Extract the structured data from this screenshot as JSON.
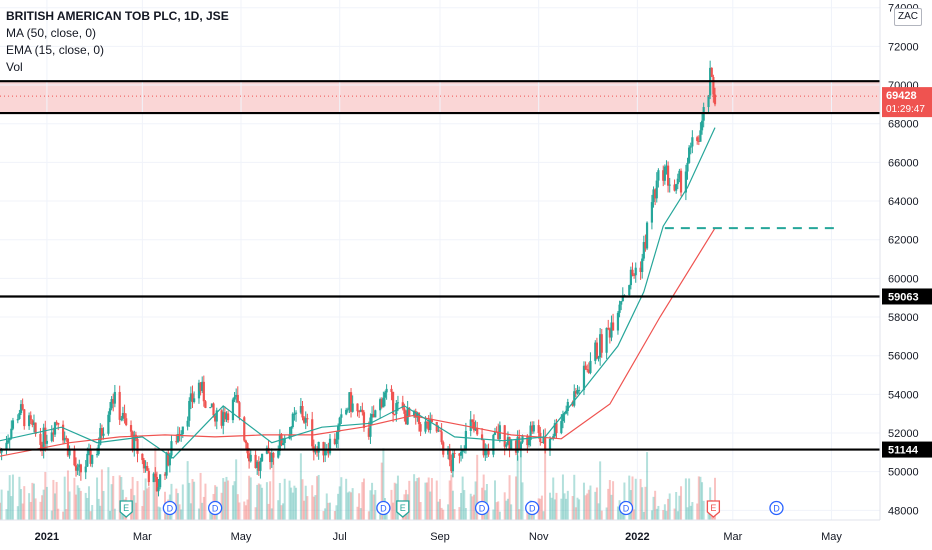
{
  "legend": {
    "title": "BRITISH AMERICAN TOB PLC, 1D, JSE",
    "ma": "MA (50, close, 0)",
    "ema": "EMA (15, close, 0)",
    "vol": "Vol"
  },
  "currency_badge": "ZAC",
  "colors": {
    "up": "#26a69a",
    "down": "#ef5350",
    "ma": "#ef5350",
    "ema": "#26a69a",
    "zone": "#f8c8c8",
    "line": "#000000",
    "target": "#26a69a",
    "price_tag": "#ef5350"
  },
  "chart_data": {
    "type": "candlestick",
    "y_axis": {
      "ylim": [
        47500,
        74400
      ],
      "ticks": [
        48000,
        50000,
        52000,
        54000,
        56000,
        58000,
        60000,
        62000,
        64000,
        66000,
        68000,
        70000,
        72000,
        74000
      ]
    },
    "x_axis": {
      "xlim": [
        "2020-12-03",
        "2022-05-31"
      ],
      "labels": [
        {
          "date": "2021-01-01",
          "text": "2021",
          "bold": true
        },
        {
          "date": "2021-03-01",
          "text": "Mar"
        },
        {
          "date": "2021-05-01",
          "text": "May"
        },
        {
          "date": "2021-07-01",
          "text": "Jul"
        },
        {
          "date": "2021-09-01",
          "text": "Sep"
        },
        {
          "date": "2021-11-01",
          "text": "Nov"
        },
        {
          "date": "2022-01-01",
          "text": "2022",
          "bold": true
        },
        {
          "date": "2022-03-01",
          "text": "Mar"
        },
        {
          "date": "2022-05-01",
          "text": "May"
        }
      ]
    },
    "current_price": {
      "value": 69428,
      "label": "69428",
      "countdown": "01:29:47"
    },
    "horizontal_lines": [
      {
        "value": 70200
      },
      {
        "value": 68550
      },
      {
        "value": 59063,
        "label": "59063"
      },
      {
        "value": 51144,
        "label": "51144"
      }
    ],
    "zone": {
      "from": 68550,
      "to": 70200
    },
    "target_line": {
      "value": 62600,
      "from": "2022-01-18",
      "to": "2022-05-04"
    },
    "close_points": [
      [
        "2020-12-03",
        51000
      ],
      [
        "2020-12-15",
        53200
      ],
      [
        "2020-12-28",
        51500
      ],
      [
        "2021-01-08",
        52800
      ],
      [
        "2021-01-20",
        49800
      ],
      [
        "2021-02-01",
        51200
      ],
      [
        "2021-02-10",
        54000
      ],
      [
        "2021-02-22",
        51800
      ],
      [
        "2021-03-03",
        50200
      ],
      [
        "2021-03-10",
        49200
      ],
      [
        "2021-03-22",
        51800
      ],
      [
        "2021-04-05",
        54500
      ],
      [
        "2021-04-15",
        52600
      ],
      [
        "2021-04-28",
        53600
      ],
      [
        "2021-05-06",
        51000
      ],
      [
        "2021-05-12",
        50200
      ],
      [
        "2021-05-26",
        51600
      ],
      [
        "2021-06-07",
        53200
      ],
      [
        "2021-06-17",
        51000
      ],
      [
        "2021-06-28",
        51700
      ],
      [
        "2021-07-07",
        53600
      ],
      [
        "2021-07-19",
        52200
      ],
      [
        "2021-07-28",
        54000
      ],
      [
        "2021-08-09",
        53000
      ],
      [
        "2021-08-19",
        52500
      ],
      [
        "2021-08-30",
        52100
      ],
      [
        "2021-09-08",
        50300
      ],
      [
        "2021-09-20",
        52400
      ],
      [
        "2021-09-29",
        51000
      ],
      [
        "2021-10-08",
        52000
      ],
      [
        "2021-10-20",
        51200
      ],
      [
        "2021-10-28",
        52300
      ],
      [
        "2021-11-05",
        51300
      ],
      [
        "2021-11-15",
        52900
      ],
      [
        "2021-11-25",
        54200
      ],
      [
        "2021-12-03",
        55800
      ],
      [
        "2021-12-13",
        57000
      ],
      [
        "2021-12-22",
        59200
      ],
      [
        "2022-01-04",
        61000
      ],
      [
        "2022-01-10",
        64000
      ],
      [
        "2022-01-17",
        65700
      ],
      [
        "2022-01-25",
        64400
      ],
      [
        "2022-02-03",
        66500
      ],
      [
        "2022-02-10",
        67800
      ],
      [
        "2022-02-15",
        70200
      ],
      [
        "2022-02-18",
        69428
      ]
    ],
    "ma50": [
      [
        "2020-12-03",
        50800
      ],
      [
        "2021-01-15",
        51500
      ],
      [
        "2021-02-15",
        51800
      ],
      [
        "2021-03-15",
        51900
      ],
      [
        "2021-04-15",
        51800
      ],
      [
        "2021-05-15",
        51900
      ],
      [
        "2021-06-15",
        51900
      ],
      [
        "2021-07-15",
        52300
      ],
      [
        "2021-08-15",
        52900
      ],
      [
        "2021-09-15",
        52400
      ],
      [
        "2021-10-15",
        51900
      ],
      [
        "2021-11-15",
        51700
      ],
      [
        "2021-12-15",
        53500
      ],
      [
        "2022-01-15",
        58000
      ],
      [
        "2022-02-18",
        62600
      ]
    ],
    "ema15": [
      [
        "2020-12-03",
        51600
      ],
      [
        "2021-01-10",
        52300
      ],
      [
        "2021-02-01",
        51500
      ],
      [
        "2021-03-01",
        51800
      ],
      [
        "2021-03-20",
        50700
      ],
      [
        "2021-04-20",
        53400
      ],
      [
        "2021-05-20",
        51500
      ],
      [
        "2021-06-20",
        52300
      ],
      [
        "2021-07-20",
        52500
      ],
      [
        "2021-08-10",
        53400
      ],
      [
        "2021-09-10",
        51800
      ],
      [
        "2021-10-10",
        51600
      ],
      [
        "2021-11-05",
        51800
      ],
      [
        "2021-12-01",
        54500
      ],
      [
        "2021-12-20",
        56500
      ],
      [
        "2022-01-05",
        59300
      ],
      [
        "2022-01-17",
        62700
      ],
      [
        "2022-02-01",
        64700
      ],
      [
        "2022-02-18",
        67800
      ]
    ],
    "events": [
      {
        "date": "2021-02-19",
        "type": "E"
      },
      {
        "date": "2021-03-18",
        "type": "D"
      },
      {
        "date": "2021-04-15",
        "type": "D"
      },
      {
        "date": "2021-07-28",
        "type": "D"
      },
      {
        "date": "2021-08-09",
        "type": "E"
      },
      {
        "date": "2021-09-27",
        "type": "D"
      },
      {
        "date": "2021-10-28",
        "type": "D"
      },
      {
        "date": "2021-12-25",
        "type": "D"
      },
      {
        "date": "2022-02-17",
        "type": "E"
      },
      {
        "date": "2022-03-28",
        "type": "D"
      }
    ]
  }
}
